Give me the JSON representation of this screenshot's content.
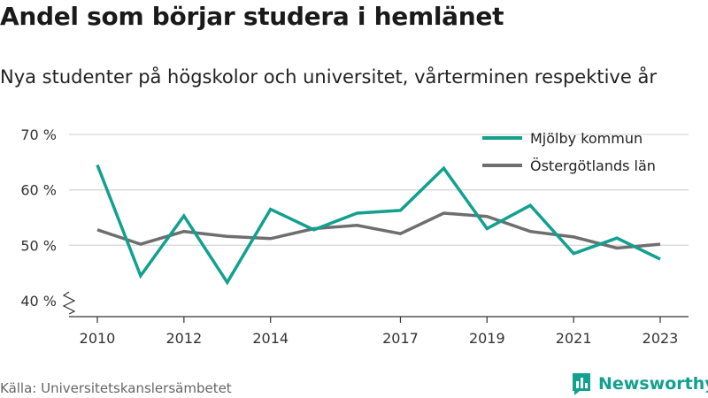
{
  "title": "Andel som börjar studera i hemlänet",
  "subtitle": "Nya studenter på högskolor och universitet, vårterminen respektive år",
  "source": "Källa: Universitetskanslersämbetet",
  "brand": {
    "name": "Newsworthy",
    "logo_icon": "bar-chart-logo-icon"
  },
  "colors": {
    "mjolby": "#12a08f",
    "ostergotland": "#6e6e6e",
    "grid": "#d9d9d9",
    "axis": "#333333"
  },
  "chart_data": {
    "type": "line",
    "x": [
      2010,
      2011,
      2012,
      2013,
      2014,
      2015,
      2016,
      2017,
      2018,
      2019,
      2020,
      2021,
      2022,
      2023
    ],
    "x_tick_labels": [
      "2010",
      "2012",
      "2014",
      "2017",
      "2019",
      "2021",
      "2023"
    ],
    "x_tick_values": [
      2010,
      2012,
      2014,
      2017,
      2019,
      2021,
      2023
    ],
    "y_ticks": [
      40,
      50,
      60,
      70
    ],
    "y_tick_labels": [
      "40 %",
      "50 %",
      "60 %",
      "70 %"
    ],
    "ylim": [
      40,
      70
    ],
    "grid": true,
    "legend_position": "top-right",
    "series": [
      {
        "name": "Mjölby kommun",
        "values": [
          64.5,
          44.5,
          55.3,
          43.3,
          56.5,
          52.8,
          55.8,
          56.3,
          63.9,
          53.0,
          57.2,
          48.5,
          51.3,
          47.5
        ]
      },
      {
        "name": "Östergötlands län",
        "values": [
          52.8,
          50.2,
          52.5,
          51.6,
          51.2,
          53.0,
          53.6,
          52.1,
          55.8,
          55.2,
          52.5,
          51.5,
          49.5,
          50.2
        ]
      }
    ]
  }
}
